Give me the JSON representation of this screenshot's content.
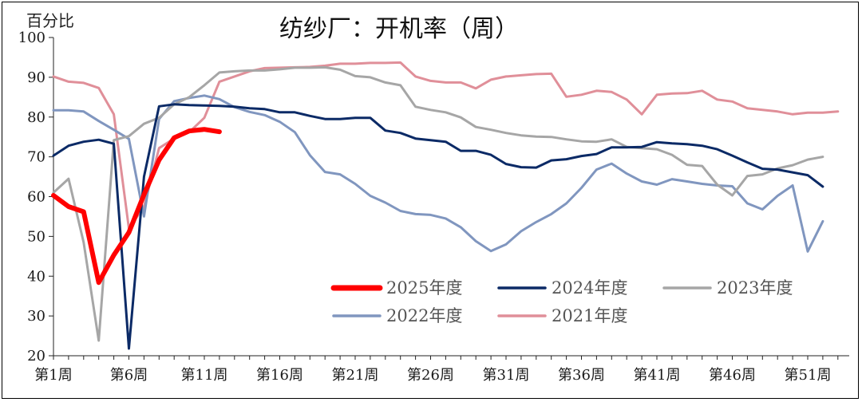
{
  "chart_data": {
    "type": "line",
    "title": "纺纱厂：开机率（周）",
    "ylabel": "百分比",
    "xlabel": "",
    "ylim": [
      20,
      100
    ],
    "yticks": [
      20,
      30,
      40,
      50,
      60,
      70,
      80,
      90,
      100
    ],
    "xlim": [
      1,
      53
    ],
    "xticks": [
      {
        "week": 1,
        "label": "第1周"
      },
      {
        "week": 6,
        "label": "第6周"
      },
      {
        "week": 11,
        "label": "第11周"
      },
      {
        "week": 16,
        "label": "第16周"
      },
      {
        "week": 21,
        "label": "第21周"
      },
      {
        "week": 26,
        "label": "第26周"
      },
      {
        "week": 31,
        "label": "第31周"
      },
      {
        "week": 36,
        "label": "第36周"
      },
      {
        "week": 41,
        "label": "第41周"
      },
      {
        "week": 46,
        "label": "第46周"
      },
      {
        "week": 51,
        "label": "第51周"
      }
    ],
    "grid": false,
    "legend": "bottom-center",
    "series": [
      {
        "name": "2025年度",
        "color": "#ff0000",
        "width": 6,
        "x": [
          1,
          2,
          3,
          4,
          5,
          6,
          7,
          8,
          9,
          10,
          11,
          12
        ],
        "values": [
          60.3,
          57.5,
          56.2,
          38.4,
          45.3,
          51.0,
          60.5,
          69.2,
          74.8,
          76.5,
          76.9,
          76.3
        ]
      },
      {
        "name": "2024年度",
        "color": "#0b2a66",
        "width": 3,
        "x": [
          1,
          2,
          3,
          4,
          5,
          6,
          7,
          8,
          9,
          10,
          11,
          12,
          13,
          14,
          15,
          16,
          17,
          18,
          19,
          20,
          21,
          22,
          23,
          24,
          25,
          26,
          27,
          28,
          29,
          30,
          31,
          32,
          33,
          34,
          35,
          36,
          37,
          38,
          39,
          40,
          41,
          42,
          43,
          44,
          45,
          46,
          47,
          48,
          49,
          50,
          51,
          52
        ],
        "values": [
          70.3,
          72.8,
          73.8,
          74.3,
          73.3,
          21.8,
          65.0,
          82.7,
          83.2,
          83.0,
          82.9,
          82.8,
          82.6,
          82.2,
          82.0,
          81.2,
          81.2,
          80.3,
          79.5,
          79.5,
          79.8,
          79.8,
          76.6,
          76.0,
          74.6,
          74.2,
          73.8,
          71.5,
          71.5,
          70.5,
          68.2,
          67.4,
          67.3,
          69.1,
          69.4,
          70.2,
          70.7,
          72.4,
          72.4,
          72.5,
          73.7,
          73.4,
          73.2,
          72.8,
          71.9,
          70.3,
          68.6,
          67.0,
          66.8,
          66.1,
          65.4,
          62.5
        ]
      },
      {
        "name": "2023年度",
        "color": "#a6a6a6",
        "width": 3,
        "x": [
          1,
          2,
          3,
          4,
          5,
          6,
          7,
          8,
          9,
          10,
          11,
          12,
          13,
          14,
          15,
          16,
          17,
          18,
          19,
          20,
          21,
          22,
          23,
          24,
          25,
          26,
          27,
          28,
          29,
          30,
          31,
          32,
          33,
          34,
          35,
          36,
          37,
          38,
          39,
          40,
          41,
          42,
          43,
          44,
          45,
          46,
          47,
          48,
          49,
          50,
          51,
          52
        ],
        "values": [
          61.0,
          64.5,
          48.5,
          23.8,
          74.2,
          75.2,
          78.3,
          79.8,
          83.2,
          85.0,
          88.0,
          91.2,
          91.5,
          91.7,
          91.7,
          92.0,
          92.4,
          92.4,
          92.5,
          91.9,
          90.3,
          90.0,
          88.7,
          88.0,
          82.6,
          81.8,
          81.2,
          79.9,
          77.5,
          76.8,
          76.0,
          75.4,
          75.1,
          75.0,
          74.4,
          73.9,
          73.8,
          74.4,
          72.5,
          72.2,
          71.9,
          70.5,
          68.0,
          67.7,
          63.0,
          60.3,
          65.2,
          65.6,
          67.1,
          67.9,
          69.3,
          70.0
        ]
      },
      {
        "name": "2022年度",
        "color": "#8096bf",
        "width": 3,
        "x": [
          1,
          2,
          3,
          4,
          5,
          6,
          7,
          8,
          9,
          10,
          11,
          12,
          13,
          14,
          15,
          16,
          17,
          18,
          19,
          20,
          21,
          22,
          23,
          24,
          25,
          26,
          27,
          28,
          29,
          30,
          31,
          32,
          33,
          34,
          35,
          36,
          37,
          38,
          39,
          40,
          41,
          42,
          43,
          44,
          45,
          46,
          47,
          48,
          49,
          50,
          51,
          52
        ],
        "values": [
          81.7,
          81.7,
          81.4,
          79.0,
          76.8,
          74.5,
          55.0,
          79.5,
          84.0,
          84.8,
          85.4,
          84.5,
          82.5,
          81.3,
          80.5,
          78.8,
          76.2,
          70.4,
          66.2,
          65.6,
          63.2,
          60.2,
          58.5,
          56.4,
          55.6,
          55.4,
          54.5,
          52.3,
          48.8,
          46.3,
          48.0,
          51.3,
          53.6,
          55.6,
          58.3,
          62.2,
          66.8,
          68.3,
          65.8,
          63.8,
          63.0,
          64.4,
          63.8,
          63.2,
          62.8,
          62.6,
          58.3,
          56.8,
          60.2,
          62.8,
          46.2,
          53.8
        ]
      },
      {
        "name": "2021年度",
        "color": "#e08f99",
        "width": 3,
        "x": [
          1,
          2,
          3,
          4,
          5,
          6,
          7,
          8,
          9,
          10,
          11,
          12,
          13,
          14,
          15,
          16,
          17,
          18,
          19,
          20,
          21,
          22,
          23,
          24,
          25,
          26,
          27,
          28,
          29,
          30,
          31,
          32,
          33,
          34,
          35,
          36,
          37,
          38,
          39,
          40,
          41,
          42,
          43,
          44,
          45,
          46,
          47,
          48,
          49,
          50,
          51,
          52,
          53
        ],
        "values": [
          90.2,
          88.9,
          88.6,
          87.3,
          80.7,
          52.0,
          57.5,
          72.2,
          74.6,
          76.2,
          79.8,
          88.9,
          90.2,
          91.5,
          92.3,
          92.4,
          92.5,
          92.6,
          92.9,
          93.4,
          93.4,
          93.6,
          93.6,
          93.7,
          90.2,
          89.1,
          88.7,
          88.7,
          87.2,
          89.4,
          90.2,
          90.5,
          90.8,
          90.9,
          85.1,
          85.6,
          86.6,
          86.3,
          84.4,
          80.7,
          85.6,
          85.9,
          86.0,
          86.6,
          84.4,
          83.9,
          82.2,
          81.8,
          81.4,
          80.7,
          81.1,
          81.1,
          81.4
        ]
      }
    ]
  }
}
